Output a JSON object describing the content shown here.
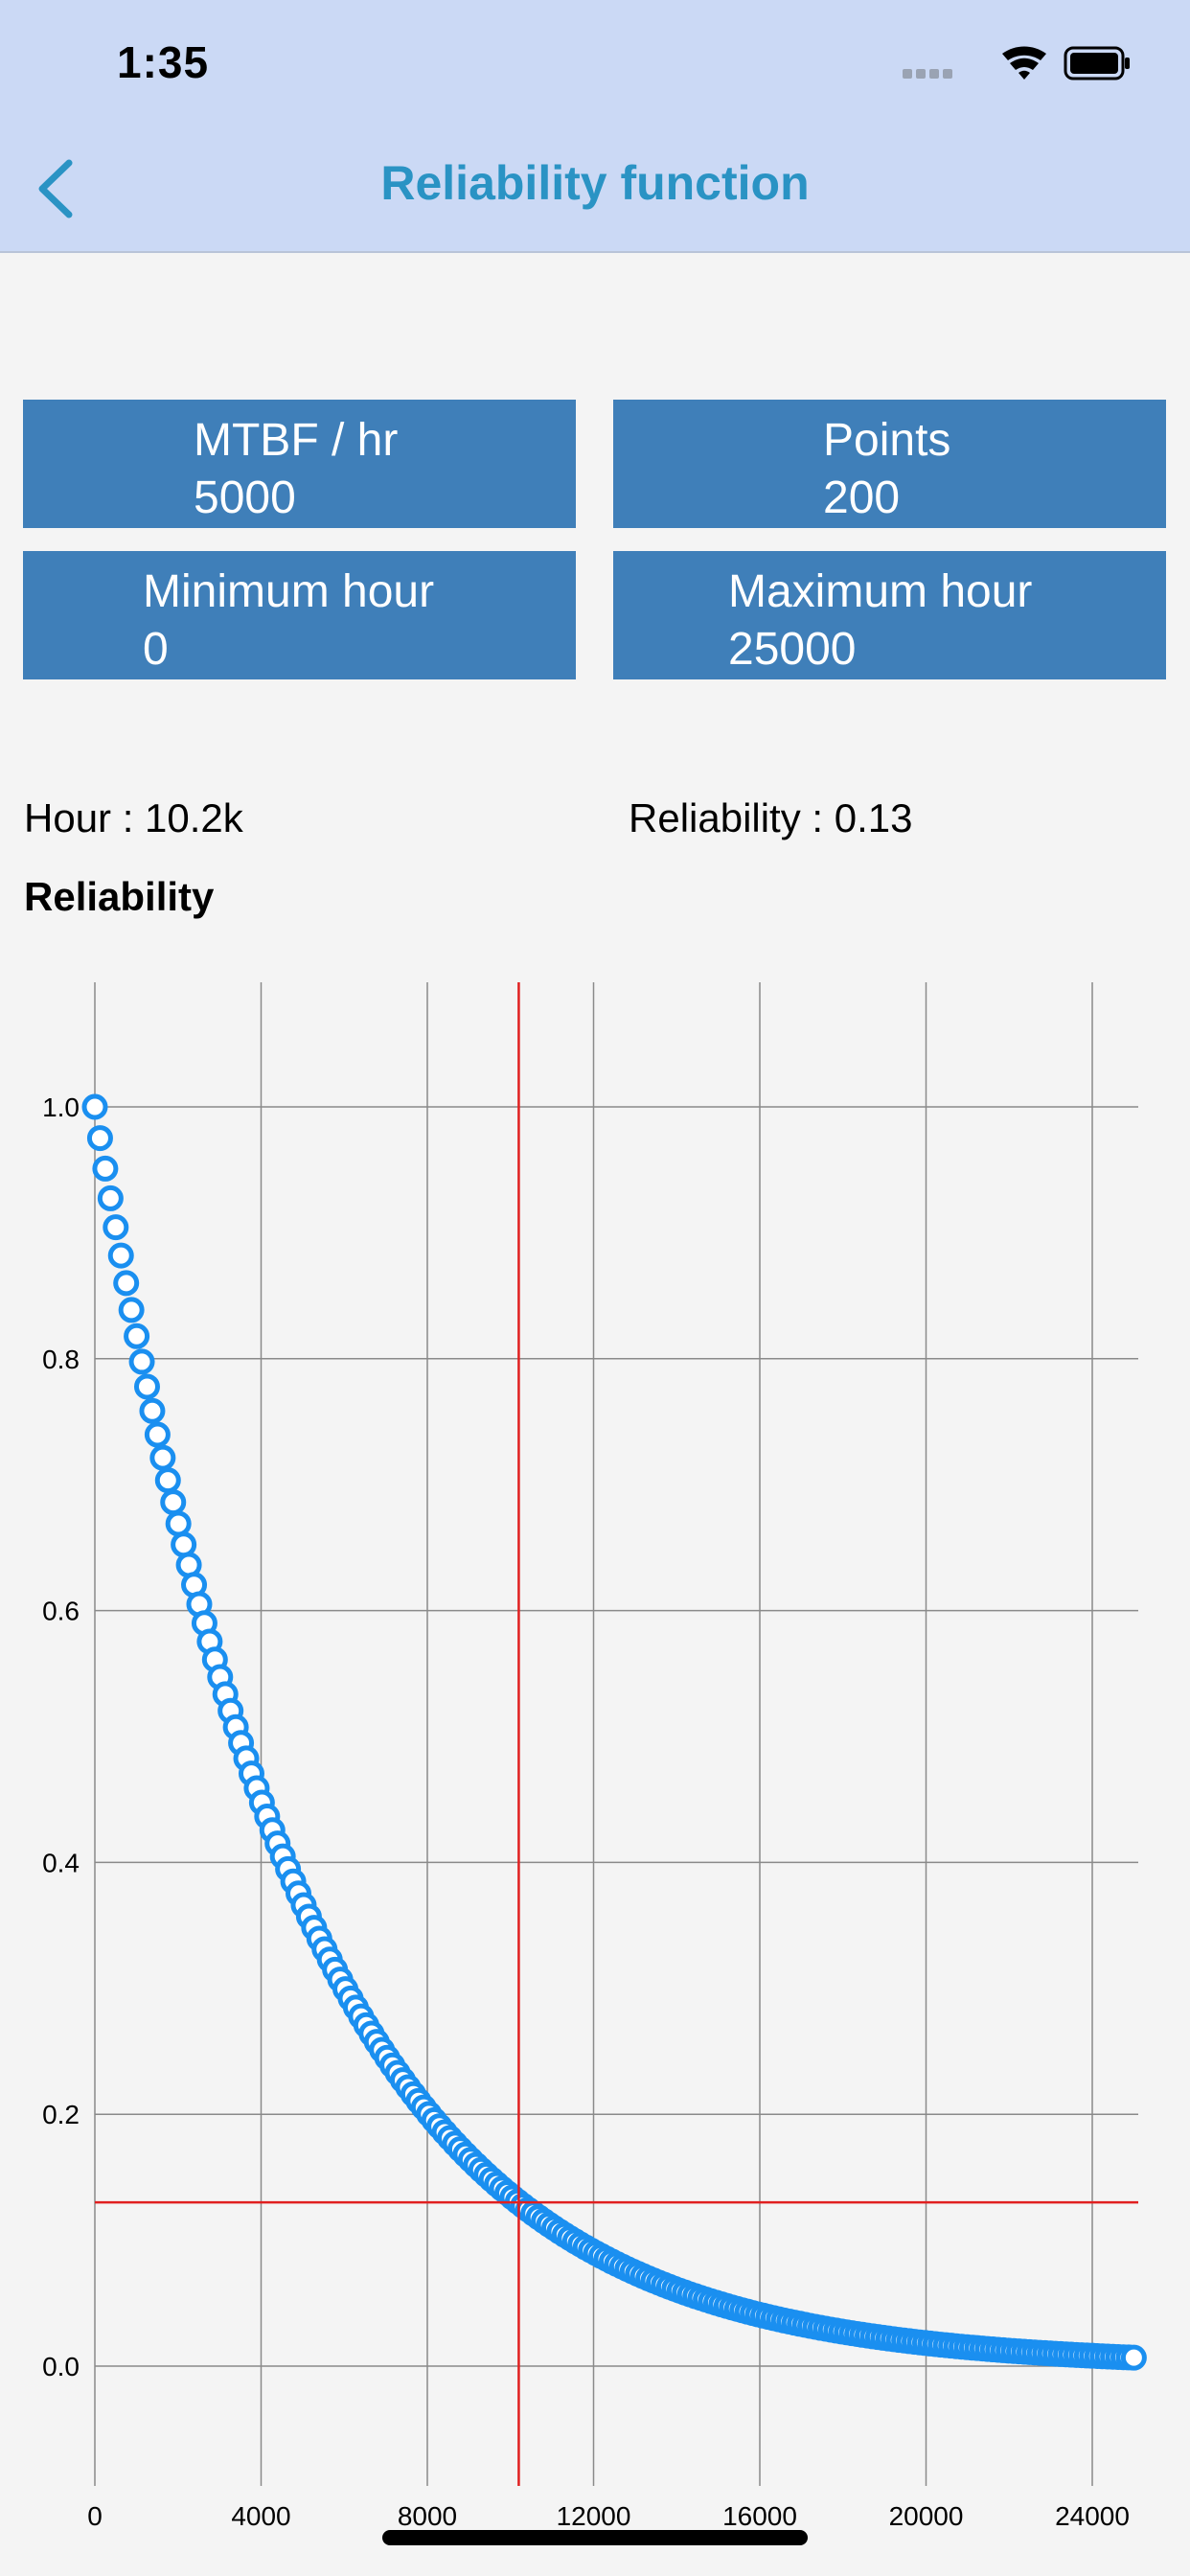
{
  "status": {
    "time": "1:35"
  },
  "nav": {
    "title": "Reliability function",
    "back_icon": "chevron-left-icon"
  },
  "params": {
    "mtbf": {
      "label": "MTBF / hr",
      "value": "5000"
    },
    "points": {
      "label": "Points",
      "value": "200"
    },
    "min_hour": {
      "label": "Minimum hour",
      "value": "0"
    },
    "max_hour": {
      "label": "Maximum hour",
      "value": "25000"
    }
  },
  "readout": {
    "hour": "Hour : 10.2k",
    "reliability": "Reliability : 0.13"
  },
  "colors": {
    "accent": "#2a93c4",
    "header_bg": "#cbd9f5",
    "box_bg": "#3f7fb9",
    "series": "#1a8ff0",
    "crosshair": "#e02020",
    "grid": "#8a8a8a"
  },
  "chart_data": {
    "type": "scatter",
    "title": "Reliability",
    "xlabel": "",
    "ylabel": "",
    "xlim": [
      0,
      25000
    ],
    "ylim": [
      -0.094,
      1.1
    ],
    "x_ticks": [
      "0",
      "4000",
      "8000",
      "12000",
      "16000",
      "20000",
      "24000"
    ],
    "y_ticks": [
      "0.0",
      "0.2",
      "0.4",
      "0.6",
      "0.8",
      "1.0"
    ],
    "grid": true,
    "legend": "none",
    "series": [
      {
        "function": "R(t) = exp(-t / 5000)",
        "mtbf": 5000,
        "points": 200,
        "x_min": 0,
        "x_max": 25000,
        "marker": "open circle"
      }
    ],
    "crosshair": {
      "x": 10200,
      "y": 0.13
    }
  }
}
